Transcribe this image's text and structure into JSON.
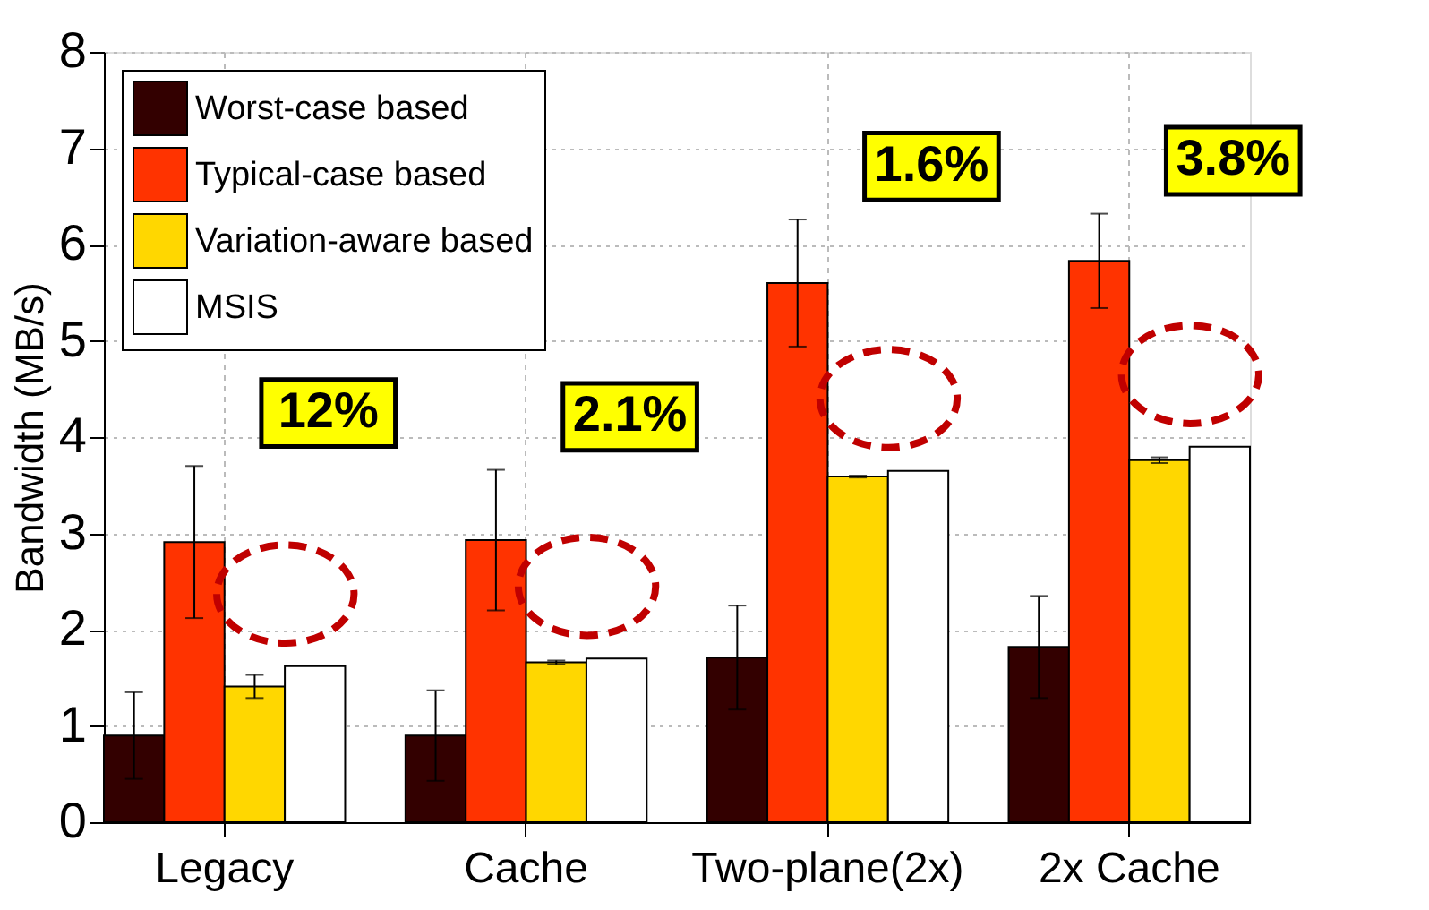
{
  "chart_data": {
    "type": "bar",
    "ylabel": "Bandwidth (MB/s)",
    "categories": [
      "Legacy",
      "Cache",
      "Two-plane(2x)",
      "2x Cache"
    ],
    "series": [
      {
        "name": "Worst-case based",
        "color": "#330000",
        "values": [
          0.9,
          0.9,
          1.71,
          1.82
        ],
        "errors": [
          0.45,
          0.47,
          0.54,
          0.53
        ]
      },
      {
        "name": "Typical-case based",
        "color": "#ff3300",
        "values": [
          2.91,
          2.93,
          5.6,
          5.83
        ],
        "errors": [
          0.79,
          0.73,
          0.66,
          0.49
        ]
      },
      {
        "name": "Variation-aware based",
        "color": "#ffd700",
        "values": [
          1.41,
          1.66,
          3.59,
          3.76
        ],
        "errors": [
          0.12,
          0.02,
          0.01,
          0.03
        ]
      },
      {
        "name": "MSIS",
        "color": "#ffffff",
        "values": [
          1.62,
          1.7,
          3.65,
          3.9
        ]
      }
    ],
    "ylim": [
      0,
      8
    ],
    "yticks": [
      0,
      1,
      2,
      3,
      4,
      5,
      6,
      7,
      8
    ],
    "grid": true,
    "legend": "top left",
    "annotations": [
      "12%",
      "2.1%",
      "1.6%",
      "3.8%"
    ]
  }
}
